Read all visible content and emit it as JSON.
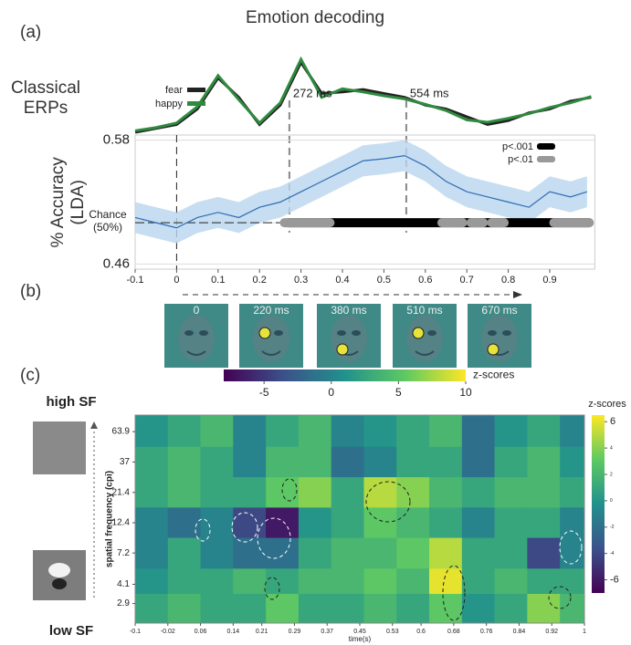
{
  "figure": {
    "title": "Emotion decoding",
    "panels": [
      "(a)",
      "(b)",
      "(c)"
    ],
    "frames": [
      "0",
      "220 ms",
      "380 ms",
      "510 ms",
      "670 ms"
    ],
    "high_label": "high SF",
    "low_label": "low SF"
  },
  "chart_data": [
    {
      "type": "line",
      "ylabel": "Classical ERPs",
      "xlim": [
        -0.1,
        1.0
      ],
      "x": [
        -0.1,
        -0.05,
        0,
        0.05,
        0.1,
        0.15,
        0.2,
        0.25,
        0.3,
        0.35,
        0.4,
        0.45,
        0.5,
        0.55,
        0.6,
        0.65,
        0.7,
        0.75,
        0.8,
        0.85,
        0.9,
        0.95,
        1.0
      ],
      "series": [
        {
          "name": "fear",
          "color": "#222222",
          "values": [
            0,
            0.5,
            1,
            3,
            7,
            4.5,
            1,
            3.5,
            9,
            5,
            5.2,
            5.5,
            5,
            4.5,
            3.5,
            3,
            2,
            1,
            1.5,
            2.5,
            3,
            4,
            4.5
          ]
        },
        {
          "name": "happy",
          "color": "#2e8b3e",
          "values": [
            0.2,
            0.6,
            1.2,
            3.3,
            7.3,
            4.2,
            1.2,
            3.8,
            9.4,
            4.5,
            5.6,
            5.2,
            4.7,
            4.3,
            3.6,
            2.8,
            1.6,
            1.3,
            1.8,
            2.4,
            3.2,
            3.8,
            4.6
          ]
        }
      ],
      "annotations": [
        {
          "value": 0.272,
          "label": "272 ms"
        },
        {
          "value": 0.554,
          "label": "554 ms"
        }
      ]
    },
    {
      "type": "line",
      "ylabel": "% Accuracy (LDA)",
      "xlim": [
        -0.1,
        1.0
      ],
      "ylim": [
        0.455,
        0.585
      ],
      "xticks": [
        -0.1,
        0,
        0.1,
        0.2,
        0.3,
        0.4,
        0.5,
        0.6,
        0.7,
        0.8,
        0.9
      ],
      "yticks": [
        0.46,
        {
          "value": 0.5,
          "label": "Chance (50%)"
        },
        0.58
      ],
      "onset": 0,
      "color": "#2f6db5",
      "band_color": "#b9d5ee",
      "x": [
        -0.1,
        -0.05,
        0,
        0.05,
        0.1,
        0.15,
        0.2,
        0.25,
        0.3,
        0.35,
        0.4,
        0.45,
        0.5,
        0.55,
        0.6,
        0.65,
        0.7,
        0.75,
        0.8,
        0.85,
        0.9,
        0.95,
        0.99
      ],
      "values": [
        0.505,
        0.5,
        0.495,
        0.505,
        0.51,
        0.505,
        0.515,
        0.52,
        0.53,
        0.54,
        0.55,
        0.56,
        0.562,
        0.565,
        0.555,
        0.54,
        0.53,
        0.525,
        0.52,
        0.515,
        0.53,
        0.525,
        0.53
      ],
      "band": {
        "lower": [
          0.49,
          0.485,
          0.48,
          0.49,
          0.495,
          0.49,
          0.5,
          0.505,
          0.515,
          0.525,
          0.535,
          0.545,
          0.547,
          0.55,
          0.54,
          0.525,
          0.515,
          0.51,
          0.505,
          0.5,
          0.515,
          0.51,
          0.515
        ],
        "upper": [
          0.52,
          0.515,
          0.51,
          0.52,
          0.525,
          0.52,
          0.53,
          0.535,
          0.545,
          0.555,
          0.565,
          0.575,
          0.577,
          0.58,
          0.57,
          0.555,
          0.545,
          0.54,
          0.535,
          0.53,
          0.545,
          0.54,
          0.545
        ]
      },
      "significance": [
        {
          "name": "p<.001",
          "color": "#000000",
          "intervals": [
            [
              0.27,
              0.995
            ]
          ]
        },
        {
          "name": "p<.01",
          "color": "#999999",
          "intervals": [
            [
              0.26,
              0.37
            ],
            [
              0.64,
              0.69
            ],
            [
              0.71,
              0.74
            ],
            [
              0.76,
              0.79
            ],
            [
              0.91,
              0.995
            ]
          ]
        }
      ]
    },
    {
      "type": "heatmap",
      "xlabel": "time(s)",
      "ylabel": "spatial frequency (cpi)",
      "log_y": true,
      "xlim": [
        -0.1,
        1
      ],
      "ylim": [
        2.04,
        86
      ],
      "xticks": [
        -0.1,
        -0.02,
        0.06,
        0.14,
        0.21,
        0.29,
        0.37,
        0.45,
        0.53,
        0.6,
        0.68,
        0.76,
        0.84,
        0.92,
        1
      ],
      "yticks": [
        2.9,
        4.1,
        7.2,
        12.4,
        21.4,
        37,
        63.9
      ],
      "x": [
        -0.06,
        0.02,
        0.1,
        0.18,
        0.26,
        0.34,
        0.42,
        0.5,
        0.58,
        0.66,
        0.74,
        0.82,
        0.9,
        0.98
      ],
      "y": [
        63.9,
        37,
        21.4,
        12.4,
        7.2,
        4.1,
        2.9
      ],
      "z": [
        [
          0,
          1,
          2,
          -1,
          1,
          2,
          -1,
          0,
          1,
          2,
          -2,
          0,
          1,
          -1
        ],
        [
          1,
          2,
          1,
          -1,
          2,
          2,
          -2,
          -1,
          1,
          1,
          -2,
          1,
          2,
          0
        ],
        [
          1,
          2,
          1,
          1,
          3,
          4,
          1,
          5,
          4,
          2,
          1,
          2,
          2,
          1
        ],
        [
          -1,
          -2,
          -1,
          -4,
          -6,
          0,
          1,
          3,
          2,
          1,
          -1,
          1,
          1,
          -1
        ],
        [
          -1,
          1,
          -1,
          -2,
          -2,
          1,
          2,
          2,
          3,
          5,
          1,
          1,
          -4,
          -1
        ],
        [
          0,
          1,
          1,
          2,
          1,
          2,
          2,
          3,
          2,
          6,
          1,
          2,
          1,
          1
        ],
        [
          1,
          2,
          1,
          1,
          3,
          1,
          1,
          2,
          1,
          3,
          0,
          1,
          4,
          2
        ]
      ],
      "zlabel": "z-scores",
      "zlim": [
        -7,
        6.5
      ],
      "zticks": [
        6,
        4,
        2,
        0,
        -2,
        -4,
        -6
      ],
      "colormap": [
        "#440154",
        "#3b528b",
        "#21918c",
        "#5ec962",
        "#fde725"
      ]
    },
    {
      "type": "colorbar",
      "label": "z-scores",
      "lim": [
        -8,
        10
      ],
      "ticks": [
        -5,
        0,
        5,
        10
      ],
      "colormap": [
        "#440154",
        "#3b528b",
        "#21918c",
        "#5ec962",
        "#fde725"
      ]
    }
  ]
}
